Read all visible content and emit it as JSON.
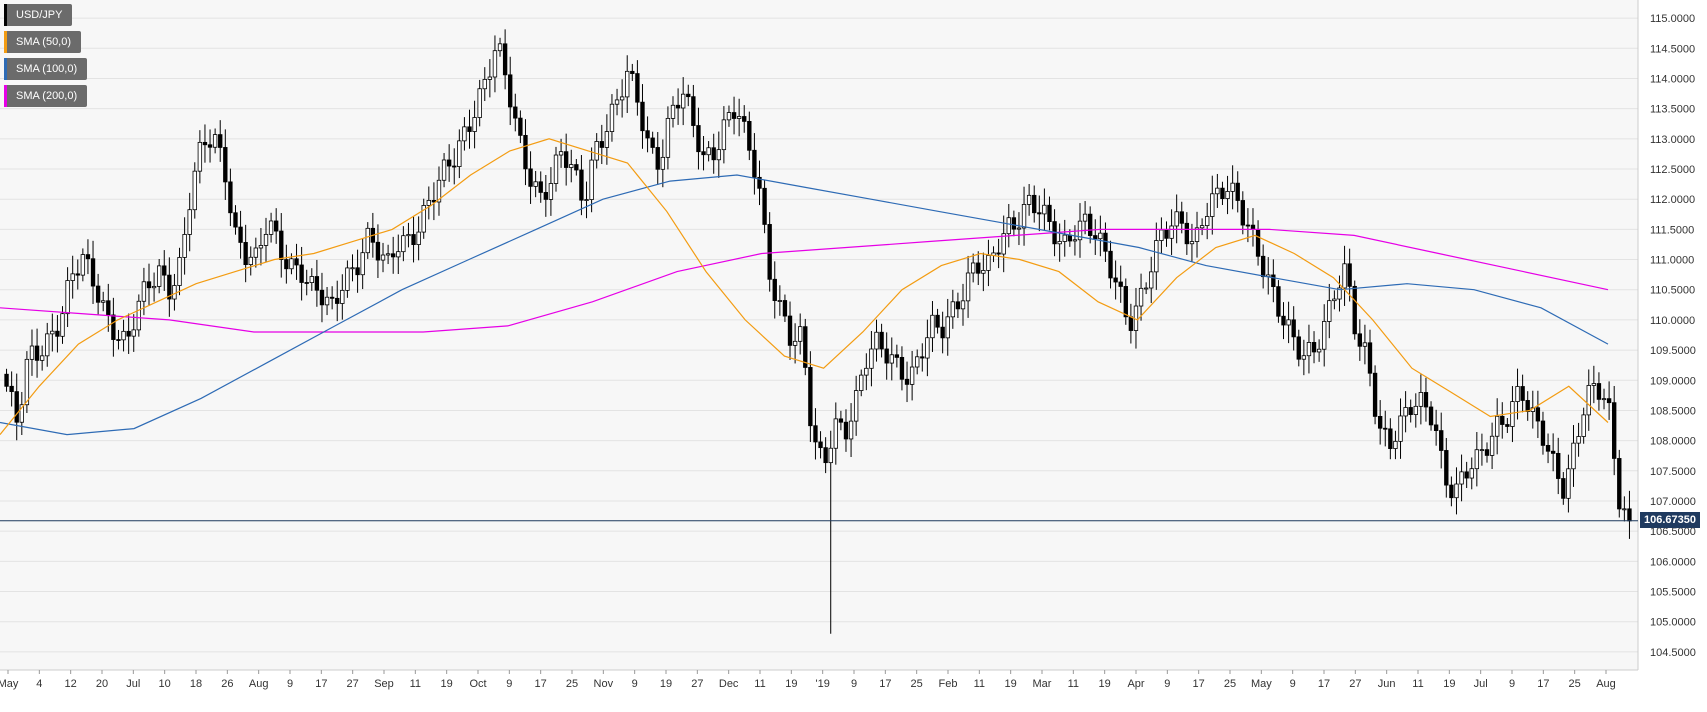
{
  "chart_data": {
    "type": "candlestick",
    "symbol": "USD/JPY",
    "ylim": [
      104.2,
      115.3
    ],
    "y_ticks": [
      "115.0000",
      "114.5000",
      "114.0000",
      "113.5000",
      "113.0000",
      "112.5000",
      "112.0000",
      "111.5000",
      "111.0000",
      "110.5000",
      "110.0000",
      "109.5000",
      "109.0000",
      "108.5000",
      "108.0000",
      "107.5000",
      "107.0000",
      "106.5000",
      "106.0000",
      "105.5000",
      "105.0000",
      "104.5000"
    ],
    "x_labels": [
      "May",
      "4",
      "12",
      "20",
      "Jul",
      "10",
      "18",
      "26",
      "Aug",
      "9",
      "17",
      "27",
      "Sep",
      "11",
      "19",
      "Oct",
      "9",
      "17",
      "25",
      "Nov",
      "9",
      "19",
      "27",
      "Dec",
      "11",
      "19",
      "'19",
      "9",
      "17",
      "25",
      "Feb",
      "11",
      "19",
      "Mar",
      "11",
      "19",
      "Apr",
      "9",
      "17",
      "25",
      "May",
      "9",
      "17",
      "27",
      "Jun",
      "11",
      "19",
      "Jul",
      "9",
      "17",
      "25",
      "Aug"
    ],
    "current_price": "106.67350",
    "grid": true,
    "legend_position": "top-left",
    "legend": [
      {
        "label": "USD/JPY",
        "color": "#000000"
      },
      {
        "label": "SMA (50,0)",
        "color": "#f39c12"
      },
      {
        "label": "SMA (100,0)",
        "color": "#2e6bb5"
      },
      {
        "label": "SMA (200,0)",
        "color": "#e600e6"
      }
    ],
    "series_anchors": {
      "close": [
        108.9,
        108.2,
        109.3,
        109.5,
        109.8,
        110.1,
        110.7,
        110.9,
        110.6,
        110.2,
        109.9,
        109.6,
        110.1,
        110.5,
        110.8,
        110.6,
        111.0,
        112.2,
        112.8,
        113.0,
        112.6,
        111.5,
        111.1,
        110.9,
        111.6,
        111.2,
        111.0,
        110.9,
        110.5,
        110.3,
        110.1,
        110.8,
        110.9,
        111.4,
        111.1,
        110.8,
        111.3,
        111.4,
        111.7,
        112.0,
        112.3,
        112.6,
        113.1,
        113.6,
        114.0,
        114.5,
        113.8,
        113.0,
        112.5,
        112.1,
        112.3,
        112.7,
        112.4,
        112.0,
        112.9,
        113.2,
        113.5,
        114.0,
        113.6,
        112.9,
        112.7,
        113.4,
        113.7,
        113.2,
        112.7,
        112.9,
        113.3,
        113.5,
        112.8,
        112.3,
        110.9,
        110.3,
        109.7,
        109.6,
        108.0,
        107.6,
        108.4,
        108.2,
        108.6,
        109.3,
        109.6,
        109.5,
        109.3,
        109.0,
        109.4,
        109.8,
        109.9,
        110.3,
        110.6,
        110.9,
        110.7,
        111.2,
        111.6,
        111.8,
        112.0,
        111.7,
        111.4,
        111.2,
        111.6,
        111.7,
        111.4,
        110.9,
        110.5,
        110.0,
        110.4,
        110.9,
        111.3,
        111.5,
        111.6,
        111.3,
        111.9,
        112.0,
        112.1,
        111.9,
        111.6,
        111.2,
        110.6,
        110.0,
        109.6,
        109.4,
        109.6,
        110.0,
        110.5,
        110.7,
        109.6,
        109.4,
        108.3,
        108.0,
        108.2,
        108.5,
        108.6,
        108.5,
        107.5,
        107.1,
        107.4,
        107.6,
        108.0,
        108.4,
        108.5,
        108.8,
        108.3,
        108.1,
        107.7,
        107.3,
        107.9,
        108.6,
        108.8,
        108.7,
        107.2,
        106.7
      ]
    },
    "sma50_anchors": [
      108.1,
      108.9,
      109.6,
      110.0,
      110.3,
      110.6,
      110.8,
      111.0,
      111.1,
      111.3,
      111.5,
      111.9,
      112.4,
      112.8,
      113.0,
      112.8,
      112.6,
      111.8,
      110.8,
      110.0,
      109.4,
      109.2,
      109.8,
      110.5,
      110.9,
      111.1,
      111.0,
      110.8,
      110.3,
      110.0,
      110.7,
      111.2,
      111.4,
      111.1,
      110.7,
      110.0,
      109.2,
      108.8,
      108.4,
      108.5,
      108.9,
      108.3
    ],
    "sma100_anchors": [
      108.3,
      108.1,
      108.2,
      108.7,
      109.3,
      109.9,
      110.5,
      111.0,
      111.5,
      112.0,
      112.3,
      112.4,
      112.2,
      112.0,
      111.8,
      111.6,
      111.4,
      111.2,
      110.9,
      110.7,
      110.5,
      110.6,
      110.5,
      110.2,
      109.6
    ],
    "sma200_anchors": [
      110.2,
      110.1,
      110.0,
      109.8,
      109.8,
      109.8,
      109.9,
      110.3,
      110.8,
      111.1,
      111.2,
      111.3,
      111.4,
      111.5,
      111.5,
      111.5,
      111.4,
      111.1,
      110.8,
      110.5
    ]
  }
}
